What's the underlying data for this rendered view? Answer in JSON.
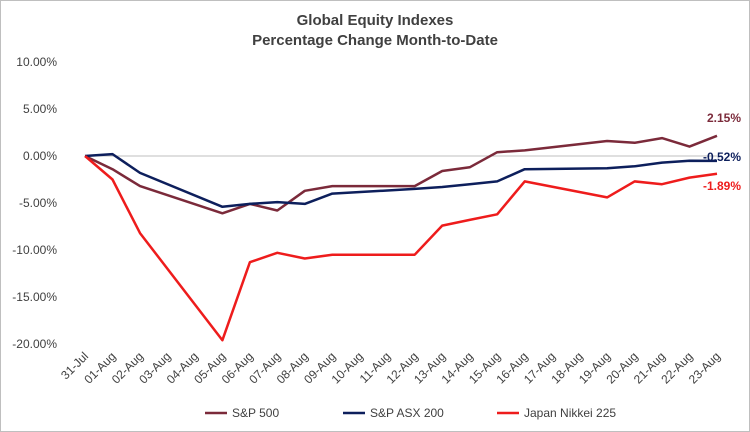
{
  "chart_data": {
    "type": "line",
    "title": "Global Equity Indexes",
    "subtitle": "Percentage Change Month-to-Date",
    "x": [
      "31-Jul",
      "01-Aug",
      "02-Aug",
      "03-Aug",
      "04-Aug",
      "05-Aug",
      "06-Aug",
      "07-Aug",
      "08-Aug",
      "09-Aug",
      "10-Aug",
      "11-Aug",
      "12-Aug",
      "13-Aug",
      "14-Aug",
      "15-Aug",
      "16-Aug",
      "17-Aug",
      "18-Aug",
      "19-Aug",
      "20-Aug",
      "21-Aug",
      "22-Aug",
      "23-Aug"
    ],
    "yticks": [
      "10.00%",
      "5.00%",
      "0.00%",
      "-5.00%",
      "-10.00%",
      "-15.00%",
      "-20.00%"
    ],
    "ylim": [
      -20,
      10
    ],
    "grid": false,
    "legend": "bottom",
    "series": [
      {
        "name": "S&P 500",
        "color": "#7b2a3a",
        "points": [
          [
            0,
            0
          ],
          [
            1,
            -1.4
          ],
          [
            2,
            -3.2
          ],
          [
            5,
            -6.1
          ],
          [
            6,
            -5.1
          ],
          [
            7,
            -5.8
          ],
          [
            8,
            -3.7
          ],
          [
            9,
            -3.2
          ],
          [
            12,
            -3.2
          ],
          [
            13,
            -1.6
          ],
          [
            14,
            -1.2
          ],
          [
            15,
            0.4
          ],
          [
            16,
            0.6
          ],
          [
            19,
            1.6
          ],
          [
            20,
            1.4
          ],
          [
            21,
            1.9
          ],
          [
            22,
            1.0
          ],
          [
            23,
            2.15
          ]
        ],
        "end_label": "2.15%"
      },
      {
        "name": "S&P ASX 200",
        "color": "#0d1f5c",
        "points": [
          [
            0,
            0
          ],
          [
            1,
            0.2
          ],
          [
            2,
            -1.8
          ],
          [
            5,
            -5.4
          ],
          [
            6,
            -5.1
          ],
          [
            7,
            -4.9
          ],
          [
            8,
            -5.1
          ],
          [
            9,
            -4.0
          ],
          [
            12,
            -3.5
          ],
          [
            13,
            -3.3
          ],
          [
            14,
            -3.0
          ],
          [
            15,
            -2.7
          ],
          [
            16,
            -1.4
          ],
          [
            19,
            -1.3
          ],
          [
            20,
            -1.1
          ],
          [
            21,
            -0.7
          ],
          [
            22,
            -0.5
          ],
          [
            23,
            -0.52
          ]
        ],
        "end_label": "-0.52%"
      },
      {
        "name": "Japan Nikkei 225",
        "color": "#ee1c1c",
        "points": [
          [
            0,
            0
          ],
          [
            1,
            -2.5
          ],
          [
            2,
            -8.2
          ],
          [
            5,
            -19.6
          ],
          [
            6,
            -11.3
          ],
          [
            7,
            -10.3
          ],
          [
            8,
            -10.9
          ],
          [
            9,
            -10.5
          ],
          [
            12,
            -10.5
          ],
          [
            13,
            -7.4
          ],
          [
            14,
            -6.8
          ],
          [
            15,
            -6.2
          ],
          [
            16,
            -2.7
          ],
          [
            19,
            -4.4
          ],
          [
            20,
            -2.7
          ],
          [
            21,
            -3.0
          ],
          [
            22,
            -2.3
          ],
          [
            23,
            -1.89
          ]
        ],
        "end_label": "-1.89%"
      }
    ]
  }
}
